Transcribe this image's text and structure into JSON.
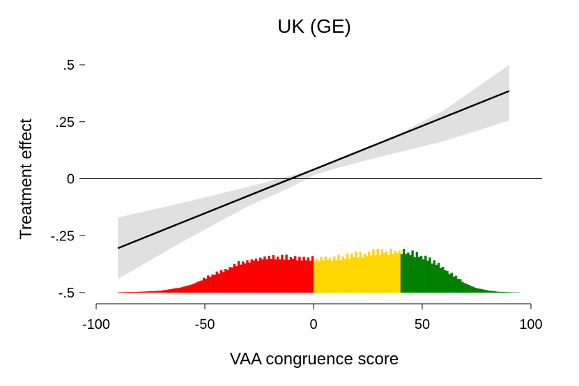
{
  "chart_data": {
    "type": "line",
    "title": "UK (GE)",
    "xlabel": "VAA congruence score",
    "ylabel": "Treatment effect",
    "xlim": [
      -100,
      100
    ],
    "ylim": [
      -0.5,
      0.5
    ],
    "x_ticks": [
      -100,
      -50,
      0,
      50,
      100
    ],
    "x_tick_labels": [
      "-100",
      "-50",
      "0",
      "50",
      "100"
    ],
    "y_ticks": [
      -0.5,
      -0.25,
      0,
      0.25,
      0.5
    ],
    "y_tick_labels": [
      "-.5",
      "-.25",
      "0",
      ".25",
      ".5"
    ],
    "reference_line_y": 0,
    "grid": false,
    "legend": "none",
    "series": [
      {
        "kind": "line",
        "color": "#000000",
        "x": [
          -90,
          90
        ],
        "y": [
          -0.305,
          0.385
        ]
      },
      {
        "kind": "confidence_band",
        "color": "#e0e0e0",
        "x": [
          -90,
          -60,
          -30,
          -10,
          0,
          10,
          30,
          60,
          90
        ],
        "upper": [
          -0.17,
          -0.105,
          -0.035,
          0.015,
          0.04,
          0.075,
          0.15,
          0.3,
          0.5
        ],
        "lower": [
          -0.44,
          -0.275,
          -0.12,
          -0.035,
          0.015,
          0.045,
          0.095,
          0.165,
          0.255
        ]
      },
      {
        "kind": "histogram",
        "bin_width": 1,
        "baseline": -0.5,
        "segments": [
          {
            "range": [
              -100,
              0
            ],
            "color": "#ff0000"
          },
          {
            "range": [
              0,
              40
            ],
            "color": "#ffd700"
          },
          {
            "range": [
              40,
              100
            ],
            "color": "#008000"
          }
        ],
        "heights": [
          [
            -90,
            0.002
          ],
          [
            -85,
            0.003
          ],
          [
            -80,
            0.004
          ],
          [
            -75,
            0.006
          ],
          [
            -70,
            0.009
          ],
          [
            -65,
            0.017
          ],
          [
            -60,
            0.025
          ],
          [
            -55,
            0.04
          ],
          [
            -50,
            0.06
          ],
          [
            -45,
            0.08
          ],
          [
            -40,
            0.1
          ],
          [
            -35,
            0.12
          ],
          [
            -30,
            0.135
          ],
          [
            -25,
            0.145
          ],
          [
            -20,
            0.15
          ],
          [
            -15,
            0.15
          ],
          [
            -10,
            0.148
          ],
          [
            -5,
            0.145
          ],
          [
            0,
            0.14
          ],
          [
            5,
            0.14
          ],
          [
            10,
            0.145
          ],
          [
            15,
            0.15
          ],
          [
            20,
            0.158
          ],
          [
            25,
            0.163
          ],
          [
            30,
            0.168
          ],
          [
            35,
            0.172
          ],
          [
            40,
            0.172
          ],
          [
            45,
            0.165
          ],
          [
            50,
            0.15
          ],
          [
            55,
            0.13
          ],
          [
            60,
            0.1
          ],
          [
            65,
            0.068
          ],
          [
            70,
            0.04
          ],
          [
            75,
            0.02
          ],
          [
            80,
            0.01
          ],
          [
            85,
            0.004
          ],
          [
            90,
            0.002
          ],
          [
            95,
            0.001
          ]
        ]
      }
    ]
  }
}
